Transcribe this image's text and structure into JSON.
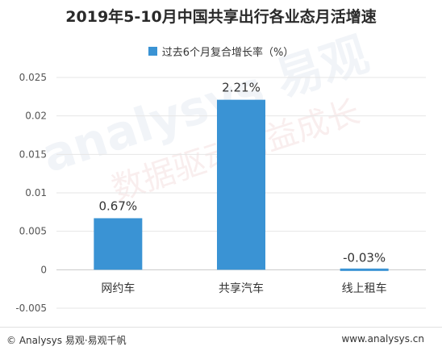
{
  "chart_data": {
    "type": "bar",
    "title": "2019年5-10月中国共享出行各业态月活增速",
    "legend_position": "top-center",
    "series": [
      {
        "name": "过去6个月复合增长率（%）",
        "color": "#3a93d4",
        "values": [
          0.0067,
          0.0221,
          -0.0003
        ],
        "data_labels": [
          "0.67%",
          "2.21%",
          "-0.03%"
        ]
      }
    ],
    "categories": [
      "网约车",
      "共享汽车",
      "线上租车"
    ],
    "yticks": [
      -0.005,
      0,
      0.005,
      0.01,
      0.015,
      0.02,
      0.025
    ],
    "ytick_labels": [
      "-0.005",
      "0",
      "0.005",
      "0.01",
      "0.015",
      "0.02",
      "0.025"
    ],
    "ylim": [
      -0.005,
      0.025
    ],
    "grid": true,
    "xlabel": "",
    "ylabel": ""
  },
  "footer": {
    "left": "© Analysys 易观·易观千帆",
    "right": "www.analysys.cn"
  },
  "watermark": {
    "line1": "analysys 易观",
    "line2": "数据驱动精益成长"
  }
}
